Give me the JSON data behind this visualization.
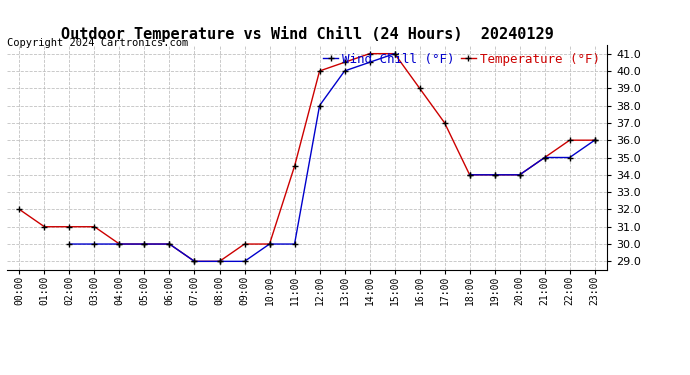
{
  "title": "Outdoor Temperature vs Wind Chill (24 Hours)  20240129",
  "copyright": "Copyright 2024 Cartronics.com",
  "legend_wind_chill": "Wind Chill (°F)",
  "legend_temperature": "Temperature (°F)",
  "hours": [
    "00:00",
    "01:00",
    "02:00",
    "03:00",
    "04:00",
    "05:00",
    "06:00",
    "07:00",
    "08:00",
    "09:00",
    "10:00",
    "11:00",
    "12:00",
    "13:00",
    "14:00",
    "15:00",
    "16:00",
    "17:00",
    "18:00",
    "19:00",
    "20:00",
    "21:00",
    "22:00",
    "23:00"
  ],
  "temperature": [
    32.0,
    31.0,
    31.0,
    31.0,
    30.0,
    30.0,
    30.0,
    29.0,
    29.0,
    30.0,
    30.0,
    34.5,
    40.0,
    40.5,
    41.0,
    41.0,
    39.0,
    37.0,
    34.0,
    34.0,
    34.0,
    35.0,
    36.0,
    36.0
  ],
  "wind_chill": [
    null,
    null,
    30.0,
    30.0,
    30.0,
    30.0,
    30.0,
    29.0,
    29.0,
    29.0,
    30.0,
    30.0,
    38.0,
    40.0,
    40.5,
    41.0,
    null,
    null,
    34.0,
    34.0,
    34.0,
    35.0,
    35.0,
    36.0
  ],
  "ylim": [
    28.5,
    41.5
  ],
  "yticks": [
    29.0,
    30.0,
    31.0,
    32.0,
    33.0,
    34.0,
    35.0,
    36.0,
    37.0,
    38.0,
    39.0,
    40.0,
    41.0
  ],
  "temp_color": "#cc0000",
  "wind_color": "#0000cc",
  "bg_color": "#ffffff",
  "grid_color": "#bbbbbb",
  "title_fontsize": 11,
  "legend_fontsize": 9,
  "copyright_fontsize": 7.5,
  "marker_size": 4,
  "line_width": 1.0
}
